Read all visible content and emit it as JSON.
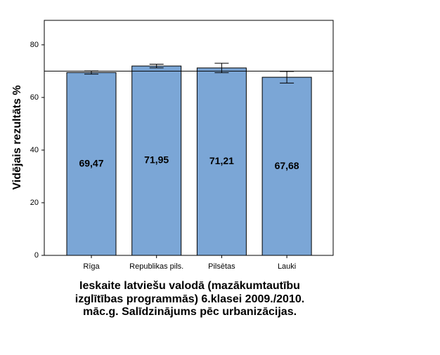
{
  "chart_data": {
    "type": "bar",
    "title_lines": [
      "Ieskaite latviešu valodā (mazākumtautību",
      "izglītības programmās) 6.klasei 2009./2010.",
      "māc.g. Salīdzinājums pēc urbanizācijas."
    ],
    "y_label": "Vidējais rezultāts %",
    "categories": [
      "Rīga",
      "Republikas pils.",
      "Pilsētas",
      "Lauki"
    ],
    "values": [
      69.47,
      71.95,
      71.21,
      67.68
    ],
    "value_labels": [
      "69,47",
      "71,95",
      "71,21",
      "67,68"
    ],
    "errors": [
      0.6,
      0.7,
      1.8,
      2.2
    ],
    "color": "#7ba6d6",
    "reference_line": 70,
    "ylim": [
      0,
      89.3
    ],
    "yticks": [
      0,
      20,
      40,
      60,
      80
    ]
  }
}
